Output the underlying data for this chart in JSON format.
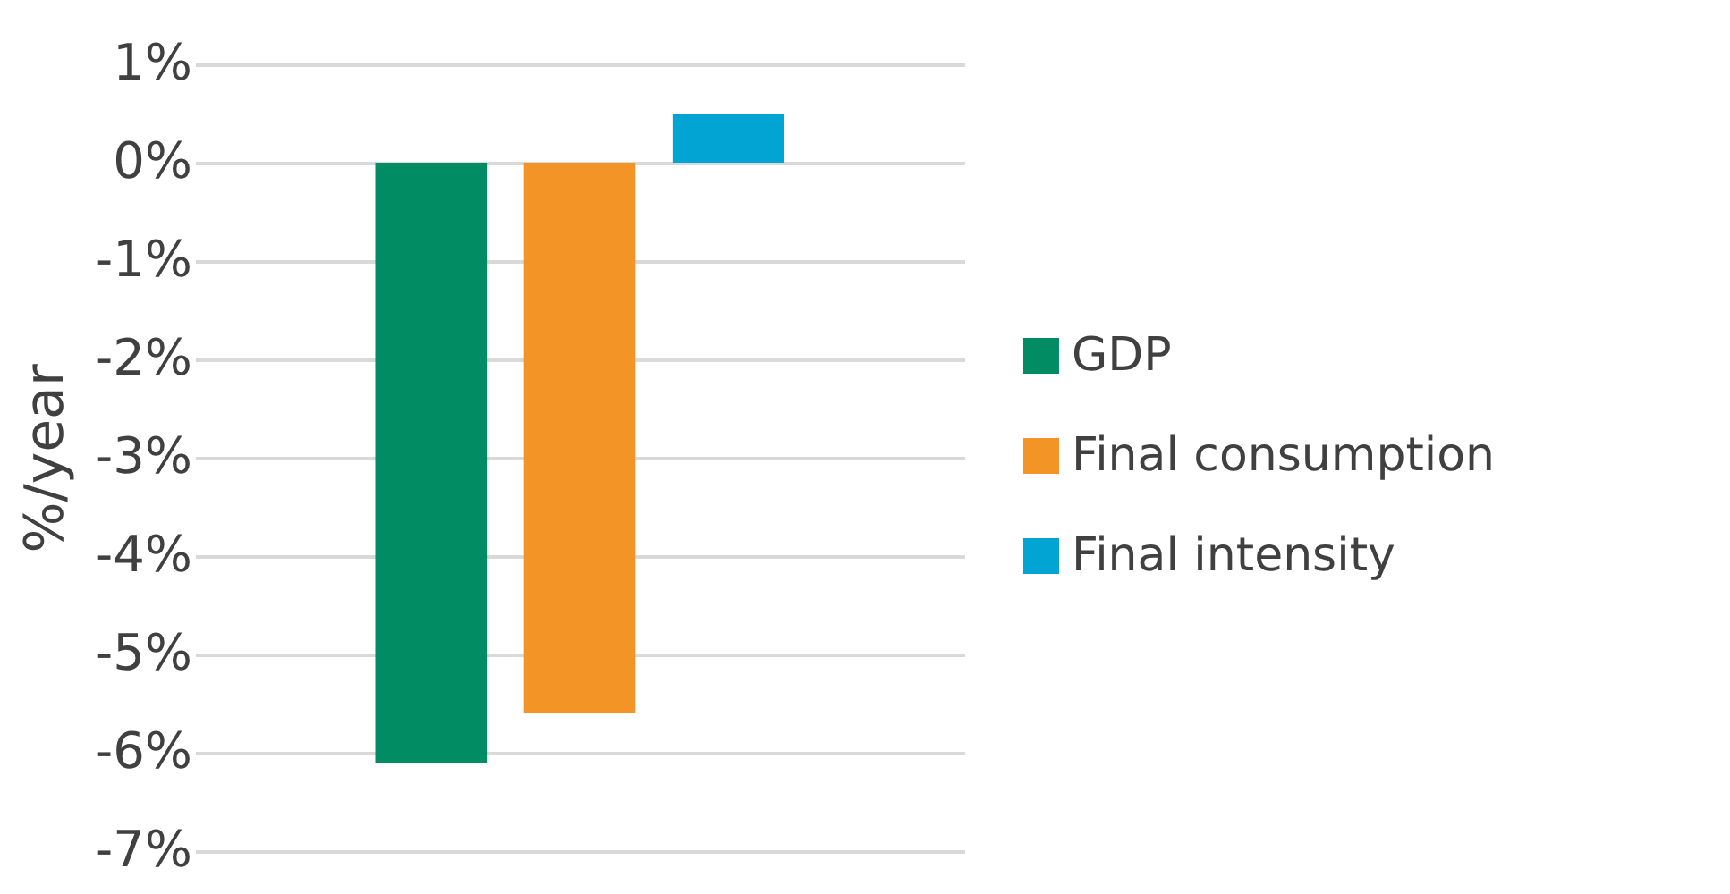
{
  "chart_data": {
    "type": "bar",
    "ylabel": "%/year",
    "categories": [
      null
    ],
    "series": [
      {
        "name": "GDP",
        "color": "#028c63",
        "values": [
          -6.1
        ]
      },
      {
        "name": "Final consumption",
        "color": "#f39427",
        "values": [
          -5.6
        ]
      },
      {
        "name": "Final intensity",
        "color": "#02a4d3",
        "values": [
          0.5
        ]
      }
    ],
    "ylim": [
      -7,
      1
    ],
    "yticks": [
      {
        "value": 1,
        "label": "1%"
      },
      {
        "value": 0,
        "label": "0%"
      },
      {
        "value": -1,
        "label": "-1%"
      },
      {
        "value": -2,
        "label": "-2%"
      },
      {
        "value": -3,
        "label": "-3%"
      },
      {
        "value": -4,
        "label": "-4%"
      },
      {
        "value": -5,
        "label": "-5%"
      },
      {
        "value": -6,
        "label": "-6%"
      },
      {
        "value": -7,
        "label": "-7%"
      }
    ],
    "grid": "y",
    "legend": "right"
  }
}
